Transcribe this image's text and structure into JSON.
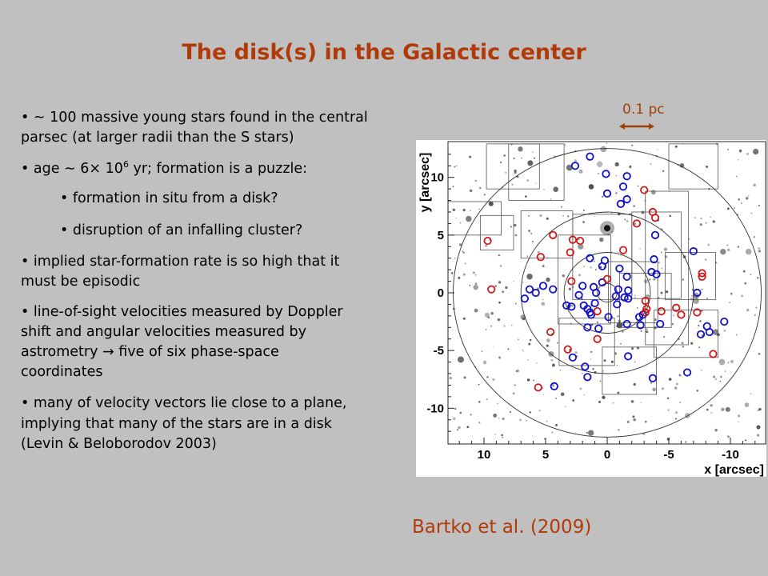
{
  "title": "The disk(s) in the Galactic center",
  "bullets": {
    "b1": [
      "•   ~ 100 massive young stars found in the central",
      "parsec (at larger radii than the S stars)"
    ],
    "b2": {
      "pre": "• age ",
      "sim": "∼",
      "six": " 6",
      "times": "×",
      "ten": "  10",
      "exp": "6",
      "post": " yr; formation is a puzzle:"
    },
    "sub1": "• formation in situ from a disk?",
    "sub2": "• disruption of an infalling cluster?",
    "b3": [
      "• implied star-formation rate is so high that it",
      "must be episodic"
    ],
    "b4": [
      "• line-of-sight velocities measured by Doppler",
      "shift and angular velocities measured by",
      "astrometry → five of six phase-space",
      "coordinates"
    ],
    "b5": [
      "• many of velocity vectors lie close to a plane,",
      "implying that many of the stars are in a disk",
      "(Levin & Beloborodov 2003)"
    ]
  },
  "scale_bar": {
    "label": "0.1 pc",
    "color": "#a0400a"
  },
  "citation": "Bartko et al.  (2009)",
  "colors": {
    "title": "#b03a08",
    "background": "#c0c0c0",
    "blue_markers": "#1010c8",
    "red_markers": "#d01818"
  },
  "chart_data": {
    "type": "scatter",
    "xlabel": "x [arcsec]",
    "ylabel": "y [arcsec]",
    "xlim": [
      13,
      -12.5
    ],
    "ylim": [
      -13,
      13
    ],
    "x_ticks": [
      "10",
      "5",
      "0",
      "-5",
      "-10"
    ],
    "y_ticks": [
      "10",
      "5",
      "0",
      "-5",
      "-10"
    ],
    "x_tick_values": [
      10,
      5,
      0,
      -5,
      -10
    ],
    "y_tick_values": [
      10,
      5,
      0,
      -5,
      -10
    ],
    "annulus_radii": [
      0.8,
      3.5,
      7,
      12.5
    ],
    "series": [
      {
        "color": "#1010c8",
        "points": [
          [
            1.4,
            11.8
          ],
          [
            2.6,
            11.0
          ],
          [
            0.1,
            10.3
          ],
          [
            -1.6,
            10.1
          ],
          [
            -1.3,
            9.2
          ],
          [
            0,
            8.6
          ],
          [
            -1.6,
            8.1
          ],
          [
            -1.1,
            7.7
          ],
          [
            -3.9,
            5.0
          ],
          [
            -7.0,
            3.6
          ],
          [
            -3.8,
            2.9
          ],
          [
            1.4,
            3.0
          ],
          [
            0.2,
            2.8
          ],
          [
            0.4,
            2.3
          ],
          [
            -1.0,
            2.1
          ],
          [
            -3.6,
            1.8
          ],
          [
            -4.0,
            1.6
          ],
          [
            -1.6,
            1.4
          ],
          [
            0.4,
            0.9
          ],
          [
            2.0,
            0.6
          ],
          [
            1.1,
            0.5
          ],
          [
            0.9,
            0.0
          ],
          [
            -0.9,
            0.3
          ],
          [
            -1.7,
            0.2
          ],
          [
            -0.7,
            -0.3
          ],
          [
            -1.4,
            -0.4
          ],
          [
            -0.8,
            -1.0
          ],
          [
            -1.7,
            -0.5
          ],
          [
            2.3,
            -0.2
          ],
          [
            1.0,
            -0.9
          ],
          [
            1.9,
            -1.1
          ],
          [
            3.3,
            -1.1
          ],
          [
            2.9,
            -1.2
          ],
          [
            1.6,
            -1.4
          ],
          [
            1.4,
            -1.7
          ],
          [
            1.3,
            -1.9
          ],
          [
            -0.1,
            -2.1
          ],
          [
            -2.9,
            -1.9
          ],
          [
            -2.6,
            -2.1
          ],
          [
            -1.6,
            -2.7
          ],
          [
            -2.7,
            -2.8
          ],
          [
            -4.3,
            -2.7
          ],
          [
            1.6,
            -3.0
          ],
          [
            0.7,
            -3.1
          ],
          [
            5.2,
            0.6
          ],
          [
            6.3,
            0.3
          ],
          [
            5.8,
            0.0
          ],
          [
            4.4,
            0.3
          ],
          [
            6.7,
            -0.5
          ],
          [
            -7.3,
            0.0
          ],
          [
            -8.1,
            -2.9
          ],
          [
            -8.3,
            -3.4
          ],
          [
            -7.6,
            -3.6
          ],
          [
            -9.5,
            -2.5
          ],
          [
            2.8,
            -5.6
          ],
          [
            -1.7,
            -5.5
          ],
          [
            1.8,
            -6.4
          ],
          [
            1.6,
            -7.3
          ],
          [
            -3.7,
            -7.4
          ],
          [
            -6.5,
            -6.9
          ],
          [
            4.3,
            -8.1
          ]
        ]
      },
      {
        "color": "#d01818",
        "points": [
          [
            -3.0,
            8.9
          ],
          [
            -3.7,
            7.0
          ],
          [
            -3.9,
            6.5
          ],
          [
            -2.4,
            6.0
          ],
          [
            4.4,
            5.0
          ],
          [
            2.8,
            4.6
          ],
          [
            2.2,
            4.5
          ],
          [
            3.0,
            3.5
          ],
          [
            5.4,
            3.1
          ],
          [
            -1.3,
            3.7
          ],
          [
            9.7,
            4.5
          ],
          [
            9.4,
            0.3
          ],
          [
            0.0,
            1.2
          ],
          [
            2.9,
            1.0
          ],
          [
            -7.7,
            1.7
          ],
          [
            -7.7,
            1.4
          ],
          [
            -3.1,
            -0.7
          ],
          [
            -3.2,
            -1.4
          ],
          [
            -3.1,
            -1.7
          ],
          [
            0.8,
            -1.6
          ],
          [
            -4.4,
            -1.6
          ],
          [
            -5.6,
            -1.3
          ],
          [
            -6.0,
            -1.9
          ],
          [
            -7.3,
            -1.7
          ],
          [
            4.6,
            -3.4
          ],
          [
            0.8,
            -4.0
          ],
          [
            3.2,
            -4.9
          ],
          [
            -8.6,
            -5.3
          ],
          [
            5.6,
            -8.2
          ]
        ]
      }
    ]
  }
}
